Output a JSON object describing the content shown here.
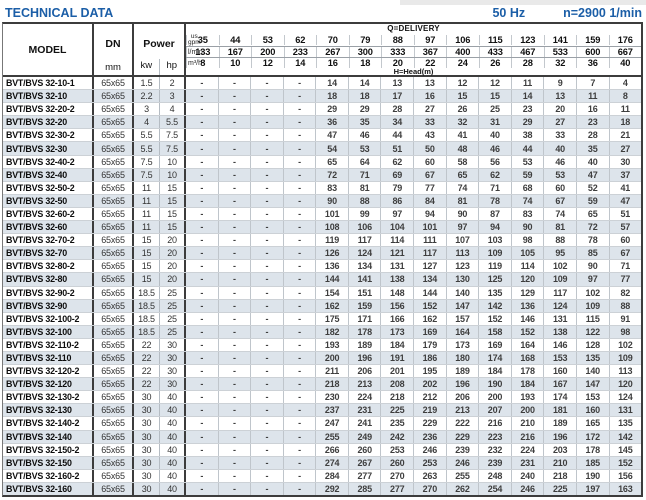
{
  "page": {
    "title": "TECHNICAL DATA",
    "frequency": "50 Hz",
    "speed": "n=2900 1/min"
  },
  "colors": {
    "accent_blue": "#1b5ea7",
    "row_alt": "#dde4eb",
    "border_dark": "#3c3c3c"
  },
  "table": {
    "model_header": "MODEL",
    "dn_header": "DN",
    "dn_unit": "mm",
    "power_header": "Power",
    "power_units": [
      "kw",
      "hp"
    ],
    "delivery_header": "Q=DELIVERY",
    "head_label": "H=Head(m)",
    "flow_units": [
      {
        "label_small": "us",
        "label": "gpm",
        "values": [
          35,
          44,
          53,
          62,
          70,
          79,
          88,
          97,
          106,
          115,
          123,
          141,
          159,
          176
        ]
      },
      {
        "label": "l/min",
        "values": [
          133,
          167,
          200,
          233,
          267,
          300,
          333,
          367,
          400,
          433,
          467,
          533,
          600,
          667
        ]
      },
      {
        "label": "m³/h",
        "values": [
          8,
          10,
          12,
          14,
          16,
          18,
          20,
          22,
          24,
          26,
          28,
          32,
          36,
          40
        ]
      }
    ],
    "rows": [
      {
        "model": "BVT/BVS 32-10-1",
        "dn": "65x65",
        "kw": "1.5",
        "hp": "2",
        "heads": [
          "-",
          "-",
          "-",
          "-",
          14,
          14,
          13,
          13,
          12,
          12,
          11,
          9,
          7,
          4
        ]
      },
      {
        "model": "BVT/BVS 32-10",
        "dn": "65x65",
        "kw": "2.2",
        "hp": "3",
        "heads": [
          "-",
          "-",
          "-",
          "-",
          18,
          18,
          17,
          16,
          15,
          15,
          14,
          13,
          11,
          8
        ]
      },
      {
        "model": "BVT/BVS 32-20-2",
        "dn": "65x65",
        "kw": "3",
        "hp": "4",
        "heads": [
          "-",
          "-",
          "-",
          "-",
          29,
          29,
          28,
          27,
          26,
          25,
          23,
          20,
          16,
          11
        ]
      },
      {
        "model": "BVT/BVS 32-20",
        "dn": "65x65",
        "kw": "4",
        "hp": "5.5",
        "heads": [
          "-",
          "-",
          "-",
          "-",
          36,
          35,
          34,
          33,
          32,
          31,
          29,
          27,
          23,
          18
        ]
      },
      {
        "model": "BVT/BVS 32-30-2",
        "dn": "65x65",
        "kw": "5.5",
        "hp": "7.5",
        "heads": [
          "-",
          "-",
          "-",
          "-",
          47,
          46,
          44,
          43,
          41,
          40,
          38,
          33,
          28,
          21
        ]
      },
      {
        "model": "BVT/BVS 32-30",
        "dn": "65x65",
        "kw": "5.5",
        "hp": "7.5",
        "heads": [
          "-",
          "-",
          "-",
          "-",
          54,
          53,
          51,
          50,
          48,
          46,
          44,
          40,
          35,
          27
        ]
      },
      {
        "model": "BVT/BVS 32-40-2",
        "dn": "65x65",
        "kw": "7.5",
        "hp": "10",
        "heads": [
          "-",
          "-",
          "-",
          "-",
          65,
          64,
          62,
          60,
          58,
          56,
          53,
          46,
          40,
          30
        ]
      },
      {
        "model": "BVT/BVS 32-40",
        "dn": "65x65",
        "kw": "7.5",
        "hp": "10",
        "heads": [
          "-",
          "-",
          "-",
          "-",
          72,
          71,
          69,
          67,
          65,
          62,
          59,
          53,
          47,
          37
        ]
      },
      {
        "model": "BVT/BVS 32-50-2",
        "dn": "65x65",
        "kw": "11",
        "hp": "15",
        "heads": [
          "-",
          "-",
          "-",
          "-",
          83,
          81,
          79,
          77,
          74,
          71,
          68,
          60,
          52,
          41
        ]
      },
      {
        "model": "BVT/BVS 32-50",
        "dn": "65x65",
        "kw": "11",
        "hp": "15",
        "heads": [
          "-",
          "-",
          "-",
          "-",
          90,
          88,
          86,
          84,
          81,
          78,
          74,
          67,
          59,
          47
        ]
      },
      {
        "model": "BVT/BVS 32-60-2",
        "dn": "65x65",
        "kw": "11",
        "hp": "15",
        "heads": [
          "-",
          "-",
          "-",
          "-",
          101,
          99,
          97,
          94,
          90,
          87,
          83,
          74,
          65,
          51
        ]
      },
      {
        "model": "BVT/BVS 32-60",
        "dn": "65x65",
        "kw": "11",
        "hp": "15",
        "heads": [
          "-",
          "-",
          "-",
          "-",
          108,
          106,
          104,
          101,
          97,
          94,
          90,
          81,
          72,
          57
        ]
      },
      {
        "model": "BVT/BVS 32-70-2",
        "dn": "65x65",
        "kw": "15",
        "hp": "20",
        "heads": [
          "-",
          "-",
          "-",
          "-",
          119,
          117,
          114,
          111,
          107,
          103,
          98,
          88,
          78,
          60
        ]
      },
      {
        "model": "BVT/BVS 32-70",
        "dn": "65x65",
        "kw": "15",
        "hp": "20",
        "heads": [
          "-",
          "-",
          "-",
          "-",
          126,
          124,
          121,
          117,
          113,
          109,
          105,
          95,
          85,
          67
        ]
      },
      {
        "model": "BVT/BVS 32-80-2",
        "dn": "65x65",
        "kw": "15",
        "hp": "20",
        "heads": [
          "-",
          "-",
          "-",
          "-",
          136,
          134,
          131,
          127,
          123,
          119,
          114,
          102,
          90,
          71
        ]
      },
      {
        "model": "BVT/BVS 32-80",
        "dn": "65x65",
        "kw": "15",
        "hp": "20",
        "heads": [
          "-",
          "-",
          "-",
          "-",
          144,
          141,
          138,
          134,
          130,
          125,
          120,
          109,
          97,
          77
        ]
      },
      {
        "model": "BVT/BVS 32-90-2",
        "dn": "65x65",
        "kw": "18.5",
        "hp": "25",
        "heads": [
          "-",
          "-",
          "-",
          "-",
          154,
          151,
          148,
          144,
          140,
          135,
          129,
          117,
          102,
          82
        ]
      },
      {
        "model": "BVT/BVS 32-90",
        "dn": "65x65",
        "kw": "18.5",
        "hp": "25",
        "heads": [
          "-",
          "-",
          "-",
          "-",
          162,
          159,
          156,
          152,
          147,
          142,
          136,
          124,
          109,
          88
        ]
      },
      {
        "model": "BVT/BVS 32-100-2",
        "dn": "65x65",
        "kw": "18.5",
        "hp": "25",
        "heads": [
          "-",
          "-",
          "-",
          "-",
          175,
          171,
          166,
          162,
          157,
          152,
          146,
          131,
          115,
          91
        ]
      },
      {
        "model": "BVT/BVS 32-100",
        "dn": "65x65",
        "kw": "18.5",
        "hp": "25",
        "heads": [
          "-",
          "-",
          "-",
          "-",
          182,
          178,
          173,
          169,
          164,
          158,
          152,
          138,
          122,
          98
        ]
      },
      {
        "model": "BVT/BVS 32-110-2",
        "dn": "65x65",
        "kw": "22",
        "hp": "30",
        "heads": [
          "-",
          "-",
          "-",
          "-",
          193,
          189,
          184,
          179,
          173,
          169,
          164,
          146,
          128,
          102
        ]
      },
      {
        "model": "BVT/BVS 32-110",
        "dn": "65x65",
        "kw": "22",
        "hp": "30",
        "heads": [
          "-",
          "-",
          "-",
          "-",
          200,
          196,
          191,
          186,
          180,
          174,
          168,
          153,
          135,
          109
        ]
      },
      {
        "model": "BVT/BVS 32-120-2",
        "dn": "65x65",
        "kw": "22",
        "hp": "30",
        "heads": [
          "-",
          "-",
          "-",
          "-",
          211,
          206,
          201,
          195,
          189,
          184,
          178,
          160,
          140,
          113
        ]
      },
      {
        "model": "BVT/BVS 32-120",
        "dn": "65x65",
        "kw": "22",
        "hp": "30",
        "heads": [
          "-",
          "-",
          "-",
          "-",
          218,
          213,
          208,
          202,
          196,
          190,
          184,
          167,
          147,
          120
        ]
      },
      {
        "model": "BVT/BVS 32-130-2",
        "dn": "65x65",
        "kw": "30",
        "hp": "40",
        "heads": [
          "-",
          "-",
          "-",
          "-",
          230,
          224,
          218,
          212,
          206,
          200,
          193,
          174,
          153,
          124
        ]
      },
      {
        "model": "BVT/BVS 32-130",
        "dn": "65x65",
        "kw": "30",
        "hp": "40",
        "heads": [
          "-",
          "-",
          "-",
          "-",
          237,
          231,
          225,
          219,
          213,
          207,
          200,
          181,
          160,
          131
        ]
      },
      {
        "model": "BVT/BVS 32-140-2",
        "dn": "65x65",
        "kw": "30",
        "hp": "40",
        "heads": [
          "-",
          "-",
          "-",
          "-",
          247,
          241,
          235,
          229,
          222,
          216,
          210,
          189,
          165,
          135
        ]
      },
      {
        "model": "BVT/BVS 32-140",
        "dn": "65x65",
        "kw": "30",
        "hp": "40",
        "heads": [
          "-",
          "-",
          "-",
          "-",
          255,
          249,
          242,
          236,
          229,
          223,
          216,
          196,
          172,
          142
        ]
      },
      {
        "model": "BVT/BVS 32-150-2",
        "dn": "65x65",
        "kw": "30",
        "hp": "40",
        "heads": [
          "-",
          "-",
          "-",
          "-",
          266,
          260,
          253,
          246,
          239,
          232,
          224,
          203,
          178,
          145
        ]
      },
      {
        "model": "BVT/BVS 32-150",
        "dn": "65x65",
        "kw": "30",
        "hp": "40",
        "heads": [
          "-",
          "-",
          "-",
          "-",
          274,
          267,
          260,
          253,
          246,
          239,
          231,
          210,
          185,
          152
        ]
      },
      {
        "model": "BVT/BVS 32-160-2",
        "dn": "65x65",
        "kw": "30",
        "hp": "40",
        "heads": [
          "-",
          "-",
          "-",
          "-",
          284,
          277,
          270,
          263,
          255,
          248,
          240,
          218,
          190,
          156
        ]
      },
      {
        "model": "BVT/BVS 32-160",
        "dn": "65x65",
        "kw": "30",
        "hp": "40",
        "heads": [
          "-",
          "-",
          "-",
          "-",
          292,
          285,
          277,
          270,
          262,
          254,
          246,
          225,
          197,
          163
        ]
      }
    ]
  }
}
